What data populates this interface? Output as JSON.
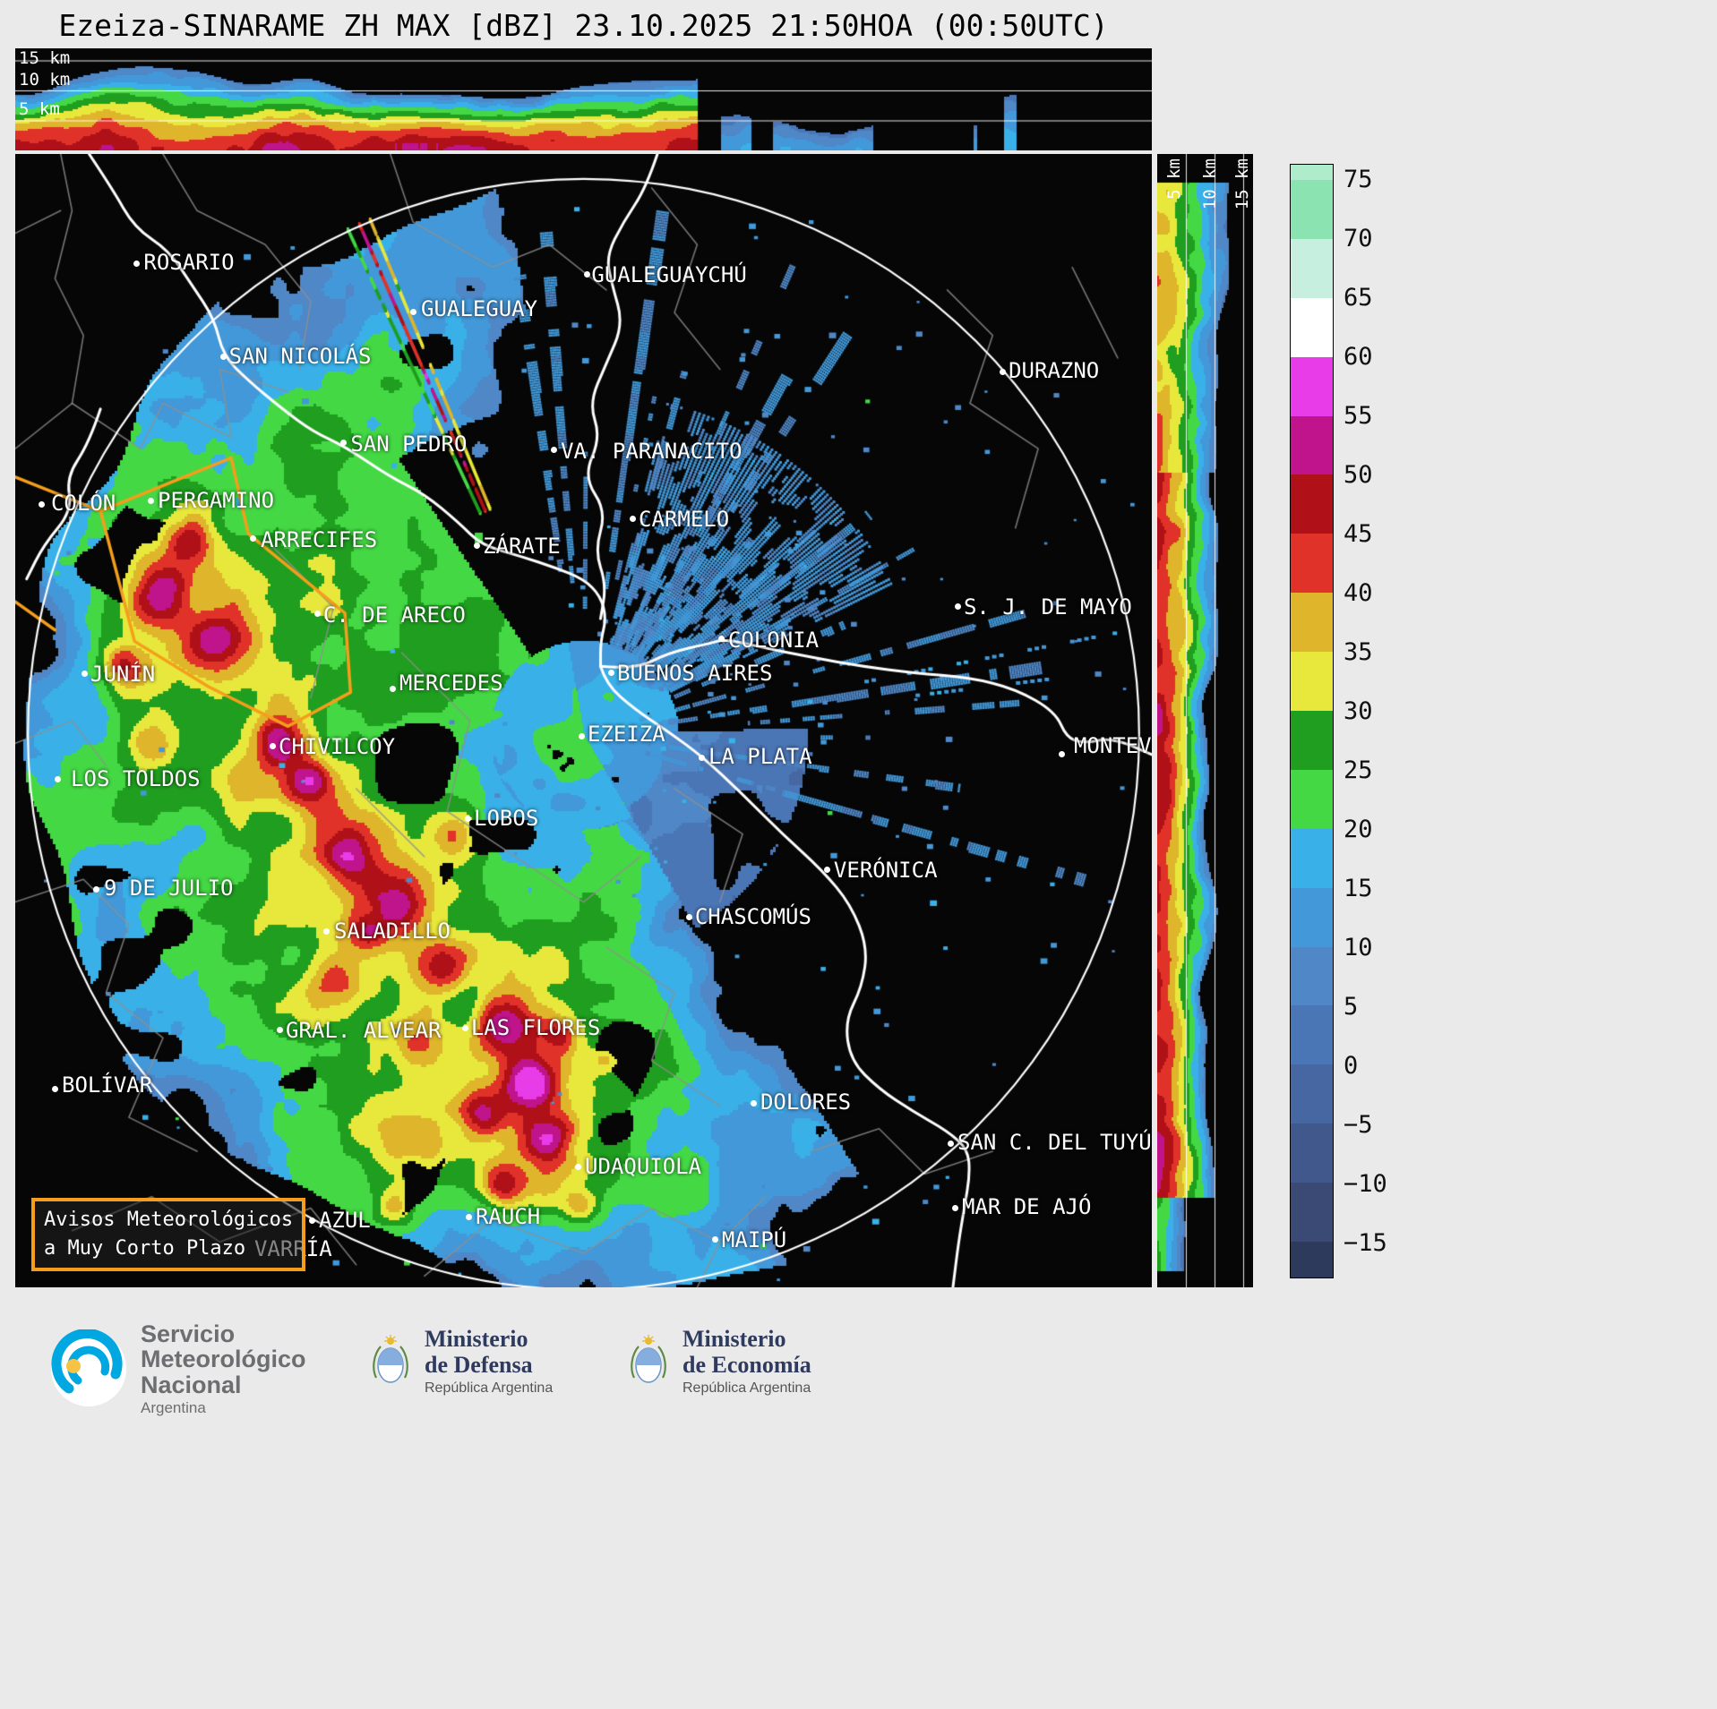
{
  "title": "Ezeiza-SINARAME ZH MAX [dBZ] 23.10.2025 21:50HOA (00:50UTC)",
  "top_xsection": {
    "height_labels": [
      "15 km",
      "10 km",
      "5 km"
    ]
  },
  "right_xsection": {
    "height_labels": [
      "5 km",
      "10 km",
      "15 km"
    ]
  },
  "colorbar": {
    "unit": "dBZ",
    "ticks": [
      "75",
      "70",
      "65",
      "60",
      "55",
      "50",
      "45",
      "40",
      "35",
      "30",
      "25",
      "20",
      "15",
      "10",
      "5",
      "0",
      "−5",
      "−10",
      "−15"
    ],
    "colors_bottom_to_top": [
      "#3a4a75",
      "#40588c",
      "#4667a2",
      "#4b76b5",
      "#4f87c7",
      "#4298d8",
      "#39b0e8",
      "#44d944",
      "#1f9e1f",
      "#e8e83c",
      "#dfb52b",
      "#e03228",
      "#b01118",
      "#c0148c",
      "#e83ce8",
      "#ffffff",
      "#c6efe0",
      "#8ce3b2"
    ],
    "extend_low_color": "#2e3a5c",
    "extend_high_color": "#aeeccb"
  },
  "map": {
    "radar_site": "EZEIZA",
    "range_ring": {
      "cx": 0.5,
      "cy": 0.512,
      "r": 0.49
    },
    "advisory_box": {
      "line1": "Avisos Meteorológicos",
      "line2": "a Muy Corto Plazo"
    },
    "colors": {
      "city": "#ffffff",
      "river": "#ffffff",
      "boundary": "#909090",
      "ring": "#ffffff",
      "advisory": "#f59e1b",
      "background": "#060606"
    },
    "cities": [
      {
        "name": "ROSARIO",
        "lx": 0.113,
        "ly": 0.0845,
        "dx": 0.107,
        "dy": 0.097
      },
      {
        "name": "GUALEGUAYCHÚ",
        "lx": 0.507,
        "ly": 0.0956,
        "dx": 0.503,
        "dy": 0.1066
      },
      {
        "name": "GUALEGUAY",
        "lx": 0.357,
        "ly": 0.1256,
        "dx": 0.35,
        "dy": 0.1398
      },
      {
        "name": "SAN NICOLÁS",
        "lx": 0.188,
        "ly": 0.1675,
        "dx": 0.183,
        "dy": 0.1793
      },
      {
        "name": "DURAZNO",
        "lx": 0.874,
        "ly": 0.1801,
        "dx": 0.869,
        "dy": 0.192
      },
      {
        "name": "SAN PEDRO",
        "lx": 0.295,
        "ly": 0.2449,
        "dx": 0.289,
        "dy": 0.2551
      },
      {
        "name": "VA. PARANACITO",
        "lx": 0.48,
        "ly": 0.2512,
        "dx": 0.474,
        "dy": 0.2614
      },
      {
        "name": "COLÓN",
        "lx": 0.0315,
        "ly": 0.297,
        "dx": 0.0236,
        "dy": 0.3096
      },
      {
        "name": "PERGAMINO",
        "lx": 0.1253,
        "ly": 0.2946,
        "dx": 0.119,
        "dy": 0.3057
      },
      {
        "name": "ARRECIFES",
        "lx": 0.216,
        "ly": 0.3294,
        "dx": 0.2096,
        "dy": 0.3396
      },
      {
        "name": "ZÁRATE",
        "lx": 0.4114,
        "ly": 0.3349,
        "dx": 0.4059,
        "dy": 0.3452
      },
      {
        "name": "CARMELO",
        "lx": 0.5485,
        "ly": 0.3112,
        "dx": 0.543,
        "dy": 0.3215
      },
      {
        "name": "C. DE ARECO",
        "lx": 0.271,
        "ly": 0.3957,
        "dx": 0.2656,
        "dy": 0.406
      },
      {
        "name": "S. J. DE MAYO",
        "lx": 0.8345,
        "ly": 0.3886,
        "dx": 0.829,
        "dy": 0.3989
      },
      {
        "name": "COLONIA",
        "lx": 0.6272,
        "ly": 0.4178,
        "dx": 0.6217,
        "dy": 0.4281
      },
      {
        "name": "JUNÍN",
        "lx": 0.0662,
        "ly": 0.4478,
        "dx": 0.0607,
        "dy": 0.4589
      },
      {
        "name": "MERCEDES",
        "lx": 0.338,
        "ly": 0.4558,
        "dx": 0.3325,
        "dy": 0.4716
      },
      {
        "name": "BUENOS AIRES",
        "lx": 0.5296,
        "ly": 0.4471,
        "dx": 0.5248,
        "dy": 0.4581
      },
      {
        "name": "EZEIZA",
        "lx": 0.5035,
        "ly": 0.5008,
        "dx": 0.4988,
        "dy": 0.5142
      },
      {
        "name": "CHIVILCOY",
        "lx": 0.2317,
        "ly": 0.5118,
        "dx": 0.2262,
        "dy": 0.5229
      },
      {
        "name": "LA PLATA",
        "lx": 0.6099,
        "ly": 0.5205,
        "dx": 0.6044,
        "dy": 0.5324
      },
      {
        "name": "MONTEV",
        "lx": 0.9314,
        "ly": 0.511,
        "dx": 0.921,
        "dy": 0.53
      },
      {
        "name": "LOS TOLDOS",
        "lx": 0.0489,
        "ly": 0.5403,
        "dx": 0.0378,
        "dy": 0.5521
      },
      {
        "name": "LOBOS",
        "lx": 0.4035,
        "ly": 0.575,
        "dx": 0.398,
        "dy": 0.5861
      },
      {
        "name": "VERÓNICA",
        "lx": 0.7202,
        "ly": 0.6209,
        "dx": 0.7147,
        "dy": 0.6319
      },
      {
        "name": "9 DE JULIO",
        "lx": 0.078,
        "ly": 0.6367,
        "dx": 0.0717,
        "dy": 0.6485
      },
      {
        "name": "CHASCOMÚS",
        "lx": 0.598,
        "ly": 0.662,
        "dx": 0.5926,
        "dy": 0.673
      },
      {
        "name": "SALADILLO",
        "lx": 0.2805,
        "ly": 0.6746,
        "dx": 0.2742,
        "dy": 0.6864
      },
      {
        "name": "GRAL. ALVEAR",
        "lx": 0.238,
        "ly": 0.7622,
        "dx": 0.2325,
        "dy": 0.7733
      },
      {
        "name": "LAS FLORES",
        "lx": 0.401,
        "ly": 0.7599,
        "dx": 0.3956,
        "dy": 0.771
      },
      {
        "name": "BOLÍVAR",
        "lx": 0.041,
        "ly": 0.8104,
        "dx": 0.0347,
        "dy": 0.8254
      },
      {
        "name": "DOLORES",
        "lx": 0.6556,
        "ly": 0.8254,
        "dx": 0.65,
        "dy": 0.8373
      },
      {
        "name": "SAN C. DEL TUYÚ",
        "lx": 0.829,
        "ly": 0.861,
        "dx": 0.8234,
        "dy": 0.8729
      },
      {
        "name": "UDAQUIOLA",
        "lx": 0.5012,
        "ly": 0.8823,
        "dx": 0.4956,
        "dy": 0.8934
      },
      {
        "name": "MAR DE AJÓ",
        "lx": 0.8329,
        "ly": 0.9178,
        "dx": 0.8274,
        "dy": 0.9297
      },
      {
        "name": "AZUL",
        "lx": 0.2671,
        "ly": 0.9297,
        "dx": 0.2616,
        "dy": 0.9408
      },
      {
        "name": "RAUCH",
        "lx": 0.405,
        "ly": 0.9266,
        "dx": 0.3995,
        "dy": 0.9376
      },
      {
        "name": "VARRÍA",
        "lx": 0.2104,
        "ly": 0.955
      },
      {
        "name": "MAIPÚ",
        "lx": 0.6217,
        "ly": 0.9471,
        "dx": 0.6162,
        "dy": 0.9581
      }
    ],
    "rivers": [
      [
        [
          0.065,
          0.0
        ],
        [
          0.085,
          0.03
        ],
        [
          0.105,
          0.065
        ],
        [
          0.135,
          0.085
        ],
        [
          0.155,
          0.115
        ],
        [
          0.175,
          0.145
        ],
        [
          0.183,
          0.178
        ],
        [
          0.205,
          0.2
        ],
        [
          0.235,
          0.225
        ],
        [
          0.262,
          0.245
        ],
        [
          0.29,
          0.258
        ],
        [
          0.33,
          0.285
        ],
        [
          0.36,
          0.3
        ],
        [
          0.39,
          0.325
        ],
        [
          0.41,
          0.345
        ],
        [
          0.445,
          0.355
        ],
        [
          0.475,
          0.365
        ],
        [
          0.5,
          0.375
        ],
        [
          0.515,
          0.39
        ],
        [
          0.52,
          0.41
        ],
        [
          0.515,
          0.43
        ],
        [
          0.515,
          0.452
        ]
      ],
      [
        [
          0.565,
          0.0
        ],
        [
          0.555,
          0.03
        ],
        [
          0.535,
          0.06
        ],
        [
          0.52,
          0.09
        ],
        [
          0.525,
          0.115
        ],
        [
          0.535,
          0.15
        ],
        [
          0.52,
          0.185
        ],
        [
          0.505,
          0.22
        ],
        [
          0.515,
          0.25
        ],
        [
          0.5,
          0.285
        ],
        [
          0.52,
          0.315
        ],
        [
          0.51,
          0.35
        ],
        [
          0.52,
          0.38
        ],
        [
          0.515,
          0.41
        ]
      ],
      [
        [
          0.075,
          0.225
        ],
        [
          0.065,
          0.255
        ],
        [
          0.045,
          0.285
        ],
        [
          0.05,
          0.315
        ],
        [
          0.025,
          0.345
        ],
        [
          0.01,
          0.375
        ]
      ],
      [
        [
          0.515,
          0.452
        ],
        [
          0.545,
          0.455
        ],
        [
          0.575,
          0.44
        ],
        [
          0.61,
          0.432
        ],
        [
          0.625,
          0.428
        ],
        [
          0.66,
          0.436
        ],
        [
          0.7,
          0.444
        ],
        [
          0.745,
          0.452
        ],
        [
          0.79,
          0.458
        ],
        [
          0.84,
          0.462
        ],
        [
          0.88,
          0.472
        ],
        [
          0.915,
          0.492
        ],
        [
          0.925,
          0.515
        ],
        [
          0.94,
          0.52
        ],
        [
          0.965,
          0.515
        ],
        [
          1.0,
          0.53
        ]
      ],
      [
        [
          0.515,
          0.452
        ],
        [
          0.52,
          0.468
        ],
        [
          0.545,
          0.49
        ],
        [
          0.575,
          0.51
        ],
        [
          0.605,
          0.532
        ],
        [
          0.64,
          0.565
        ],
        [
          0.675,
          0.6
        ],
        [
          0.71,
          0.632
        ],
        [
          0.735,
          0.662
        ],
        [
          0.75,
          0.7
        ],
        [
          0.745,
          0.735
        ],
        [
          0.73,
          0.765
        ],
        [
          0.735,
          0.8
        ],
        [
          0.76,
          0.825
        ],
        [
          0.79,
          0.845
        ],
        [
          0.82,
          0.862
        ],
        [
          0.838,
          0.878
        ],
        [
          0.84,
          0.9
        ],
        [
          0.835,
          0.93
        ],
        [
          0.83,
          0.96
        ],
        [
          0.825,
          1.0
        ]
      ]
    ],
    "boundaries": [
      [
        [
          0.04,
          0.0
        ],
        [
          0.05,
          0.05
        ],
        [
          0.035,
          0.11
        ],
        [
          0.06,
          0.16
        ],
        [
          0.05,
          0.22
        ]
      ],
      [
        [
          0.0,
          0.07
        ],
        [
          0.04,
          0.05
        ]
      ],
      [
        [
          0.05,
          0.22
        ],
        [
          0.0,
          0.26
        ]
      ],
      [
        [
          0.05,
          0.22
        ],
        [
          0.11,
          0.26
        ],
        [
          0.13,
          0.22
        ],
        [
          0.19,
          0.25
        ],
        [
          0.18,
          0.19
        ],
        [
          0.24,
          0.21
        ]
      ],
      [
        [
          0.13,
          0.0
        ],
        [
          0.16,
          0.05
        ],
        [
          0.22,
          0.08
        ],
        [
          0.26,
          0.13
        ],
        [
          0.25,
          0.19
        ]
      ],
      [
        [
          0.33,
          0.0
        ],
        [
          0.35,
          0.06
        ],
        [
          0.42,
          0.1
        ],
        [
          0.47,
          0.08
        ],
        [
          0.52,
          0.12
        ]
      ],
      [
        [
          0.56,
          0.03
        ],
        [
          0.6,
          0.08
        ],
        [
          0.58,
          0.14
        ],
        [
          0.62,
          0.19
        ]
      ],
      [
        [
          0.82,
          0.12
        ],
        [
          0.86,
          0.16
        ],
        [
          0.84,
          0.22
        ],
        [
          0.9,
          0.26
        ],
        [
          0.88,
          0.33
        ]
      ],
      [
        [
          0.93,
          0.1
        ],
        [
          0.97,
          0.18
        ]
      ],
      [
        [
          0.0,
          0.52
        ],
        [
          0.05,
          0.5
        ],
        [
          0.08,
          0.54
        ]
      ],
      [
        [
          0.0,
          0.66
        ],
        [
          0.06,
          0.64
        ],
        [
          0.1,
          0.68
        ],
        [
          0.08,
          0.74
        ],
        [
          0.13,
          0.78
        ],
        [
          0.1,
          0.85
        ],
        [
          0.16,
          0.88
        ]
      ],
      [
        [
          0.05,
          0.95
        ],
        [
          0.12,
          0.92
        ],
        [
          0.18,
          0.96
        ],
        [
          0.26,
          0.93
        ],
        [
          0.3,
          0.98
        ]
      ],
      [
        [
          0.36,
          0.99
        ],
        [
          0.42,
          0.94
        ],
        [
          0.5,
          0.97
        ],
        [
          0.56,
          0.93
        ],
        [
          0.62,
          0.96
        ],
        [
          0.66,
          0.92
        ]
      ],
      [
        [
          0.62,
          0.96
        ],
        [
          0.6,
          1.0
        ]
      ],
      [
        [
          0.7,
          0.88
        ],
        [
          0.76,
          0.86
        ],
        [
          0.8,
          0.9
        ],
        [
          0.86,
          0.88
        ]
      ],
      [
        [
          0.22,
          0.34
        ],
        [
          0.28,
          0.4
        ],
        [
          0.26,
          0.48
        ]
      ],
      [
        [
          0.34,
          0.44
        ],
        [
          0.4,
          0.5
        ],
        [
          0.38,
          0.58
        ],
        [
          0.44,
          0.62
        ]
      ],
      [
        [
          0.3,
          0.56
        ],
        [
          0.36,
          0.62
        ]
      ],
      [
        [
          0.44,
          0.62
        ],
        [
          0.5,
          0.66
        ],
        [
          0.55,
          0.62
        ]
      ],
      [
        [
          0.52,
          0.7
        ],
        [
          0.58,
          0.74
        ],
        [
          0.56,
          0.8
        ],
        [
          0.62,
          0.84
        ]
      ],
      [
        [
          0.58,
          0.56
        ],
        [
          0.64,
          0.6
        ],
        [
          0.62,
          0.66
        ]
      ]
    ],
    "advisory_polygon": [
      [
        [
          0.075,
          0.315
        ],
        [
          0.19,
          0.268
        ],
        [
          0.205,
          0.335
        ],
        [
          0.29,
          0.405
        ],
        [
          0.295,
          0.475
        ],
        [
          0.24,
          0.505
        ],
        [
          0.17,
          0.47
        ],
        [
          0.105,
          0.43
        ],
        [
          0.075,
          0.315
        ]
      ],
      [
        [
          0.0,
          0.285
        ],
        [
          0.075,
          0.315
        ]
      ],
      [
        [
          0.0,
          0.395
        ],
        [
          0.035,
          0.42
        ]
      ]
    ],
    "echo": {
      "cores": [
        [
          0.125,
          0.39,
          0.028,
          22
        ],
        [
          0.095,
          0.452,
          0.022,
          18
        ],
        [
          0.15,
          0.34,
          0.02,
          15
        ],
        [
          0.175,
          0.425,
          0.026,
          17
        ],
        [
          0.228,
          0.515,
          0.026,
          25
        ],
        [
          0.258,
          0.552,
          0.02,
          18
        ],
        [
          0.29,
          0.622,
          0.024,
          20
        ],
        [
          0.335,
          0.662,
          0.028,
          24
        ],
        [
          0.305,
          0.685,
          0.02,
          16
        ],
        [
          0.378,
          0.718,
          0.028,
          23
        ],
        [
          0.428,
          0.768,
          0.03,
          26
        ],
        [
          0.452,
          0.818,
          0.024,
          24
        ],
        [
          0.468,
          0.868,
          0.022,
          23
        ],
        [
          0.428,
          0.91,
          0.02,
          20
        ],
        [
          0.332,
          0.928,
          0.018,
          16
        ],
        [
          0.385,
          0.598,
          0.022,
          13
        ],
        [
          0.478,
          0.778,
          0.018,
          17
        ],
        [
          0.518,
          0.798,
          0.014,
          13
        ],
        [
          0.352,
          0.778,
          0.026,
          13
        ],
        [
          0.282,
          0.728,
          0.022,
          11
        ],
        [
          0.12,
          0.518,
          0.02,
          12
        ],
        [
          0.498,
          0.928,
          0.016,
          14
        ],
        [
          0.41,
          0.845,
          0.02,
          18
        ]
      ],
      "enhancements": [
        [
          0.4,
          0.76,
          0.2,
          7
        ],
        [
          0.22,
          0.5,
          0.16,
          5
        ],
        [
          0.13,
          0.42,
          0.11,
          6
        ],
        [
          0.44,
          0.87,
          0.12,
          5
        ],
        [
          0.3,
          0.66,
          0.14,
          5
        ]
      ]
    }
  },
  "footer": {
    "smn": {
      "lines": [
        "Servicio",
        "Meteorológico",
        "Nacional"
      ],
      "country": "Argentina"
    },
    "defensa": {
      "l1": "Ministerio",
      "l2": "de Defensa",
      "sub": "República Argentina"
    },
    "economia": {
      "l1": "Ministerio",
      "l2": "de Economía",
      "sub": "República Argentina"
    }
  }
}
